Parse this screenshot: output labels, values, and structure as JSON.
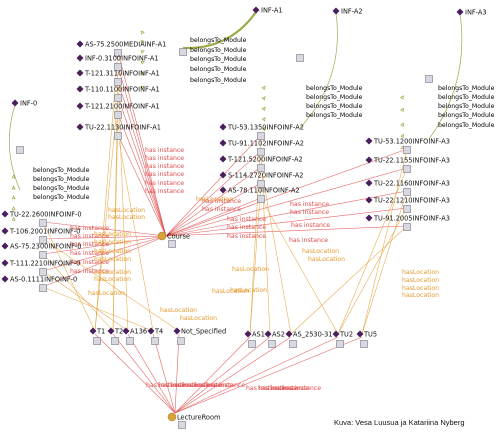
{
  "credit": "Kuva: Vesa Luusua ja Katariina Nyberg",
  "colors": {
    "has_instance": "#e34b4b",
    "has_location": "#e49a2c",
    "belongs_to": "#a257d6",
    "subclass": "#8f9a2a",
    "node_diamond": "#4a1f5c",
    "circle": "#d8a33a"
  },
  "relations": {
    "belongs": "belongsTo_Module",
    "instance": "has instance",
    "location": "hasLocation"
  },
  "modules": [
    {
      "key": "A1",
      "label": "INF-A1"
    },
    {
      "key": "A2",
      "label": "INF-A2"
    },
    {
      "key": "A3",
      "label": "INF-A3"
    },
    {
      "key": "M0",
      "label": "INF-0"
    }
  ],
  "courses": [
    {
      "key": "c1",
      "label": "AS-75.2500MEDIAINF-A1",
      "module": "A1"
    },
    {
      "key": "c2",
      "label": "INF-0.3100INFOINF-A1",
      "module": "A1"
    },
    {
      "key": "c3",
      "label": "T-121.3110INFOINF-A1",
      "module": "A1"
    },
    {
      "key": "c4",
      "label": "T-110.1100INFOINF-A1",
      "module": "A1"
    },
    {
      "key": "c5",
      "label": "T-121.2100INFOINF-A1",
      "module": "A1"
    },
    {
      "key": "c6",
      "label": "TU-22.1130INFOINF-A1",
      "module": "A1"
    },
    {
      "key": "c7",
      "label": "TU-53.1350INFOINF-A2",
      "module": "A2"
    },
    {
      "key": "c8",
      "label": "TU-91.1102INFOINF-A2",
      "module": "A2"
    },
    {
      "key": "c9",
      "label": "T-121.5200INFOINF-A2",
      "module": "A2"
    },
    {
      "key": "c10",
      "label": "S-114.2720INFOINF-A2",
      "module": "A2"
    },
    {
      "key": "c11",
      "label": "AS-78.110INFOINF-A2",
      "module": "A2"
    },
    {
      "key": "c12",
      "label": "TU-53.1200INFOINF-A3",
      "module": "A3"
    },
    {
      "key": "c13",
      "label": "TU-22.1155INFOINF-A3",
      "module": "A3"
    },
    {
      "key": "c14",
      "label": "TU-22.1160INFOINF-A3",
      "module": "A3"
    },
    {
      "key": "c15",
      "label": "TU-22.1210INFOINF-A3",
      "module": "A3"
    },
    {
      "key": "c16",
      "label": "TU-91.2005INFOINF-A3",
      "module": "A3"
    },
    {
      "key": "c17",
      "label": "TU-22.2600INFOINF-0",
      "module": "M0"
    },
    {
      "key": "c18",
      "label": "T-106.2001INFOINF-0",
      "module": "M0"
    },
    {
      "key": "c19",
      "label": "AS-75.2300INFOINF-0",
      "module": "M0"
    },
    {
      "key": "c20",
      "label": "T-111.2210INFOINF-0",
      "module": "M0"
    },
    {
      "key": "c21",
      "label": "AS-0.1111INFOINF-0",
      "module": "M0"
    }
  ],
  "hubs": [
    {
      "key": "course",
      "label": "Course"
    },
    {
      "key": "room",
      "label": "LectureRoom"
    }
  ],
  "rooms": [
    {
      "key": "r1",
      "label": "T1"
    },
    {
      "key": "r2",
      "label": "T2"
    },
    {
      "key": "r3",
      "label": "A136"
    },
    {
      "key": "r4",
      "label": "T4"
    },
    {
      "key": "r5",
      "label": "Not_Specified"
    },
    {
      "key": "r6",
      "label": "AS1"
    },
    {
      "key": "r7",
      "label": "AS2"
    },
    {
      "key": "r8",
      "label": "AS_2530-31"
    },
    {
      "key": "r9",
      "label": "TU2"
    },
    {
      "key": "r10",
      "label": "TU5"
    }
  ]
}
